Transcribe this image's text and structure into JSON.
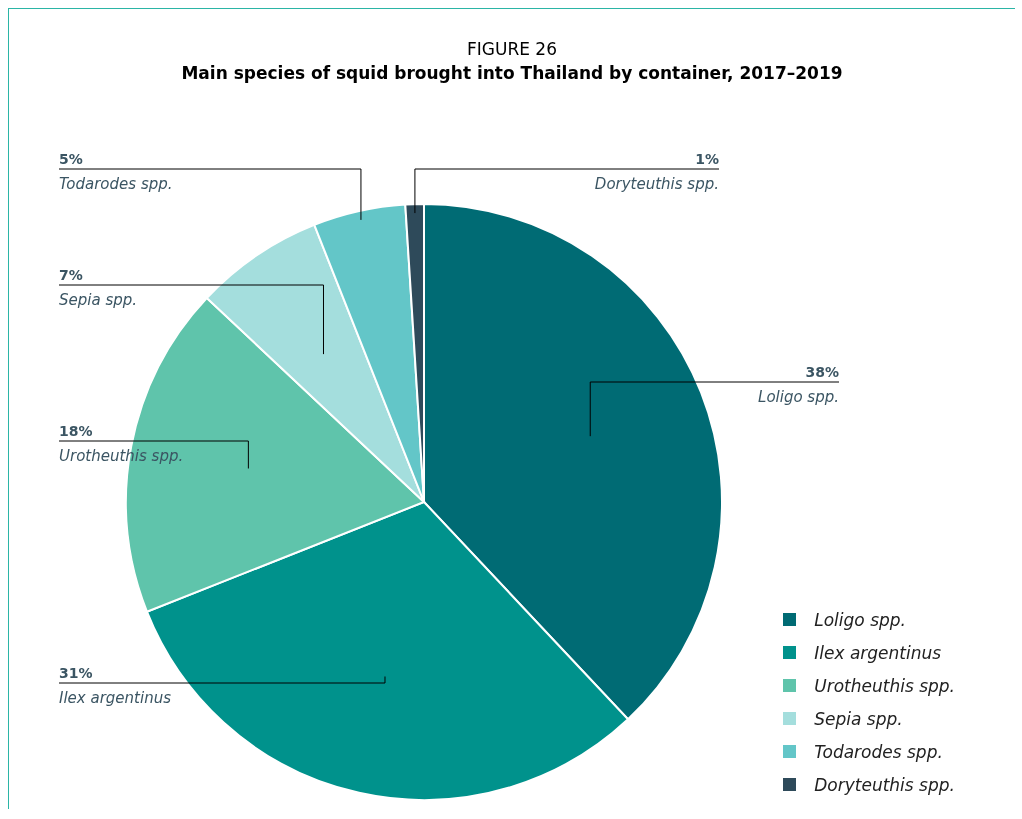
{
  "chart_data": {
    "type": "pie",
    "title": "FIGURE 26",
    "subtitle": "Main species of squid brought into Thailand by container, 2017–2019",
    "categories": [
      "Loligo spp.",
      "Ilex argentinus",
      "Urotheuthis spp.",
      "Sepia spp.",
      "Todarodes spp.",
      "Doryteuthis spp."
    ],
    "values": [
      38,
      31,
      18,
      7,
      5,
      1
    ],
    "value_labels": [
      "38%",
      "31%",
      "18%",
      "7%",
      "5%",
      "1%"
    ],
    "colors": [
      "#006b74",
      "#00928c",
      "#5fc4ab",
      "#a4dedd",
      "#63c6c8",
      "#2e4a5a"
    ],
    "legend": "bottom right"
  }
}
